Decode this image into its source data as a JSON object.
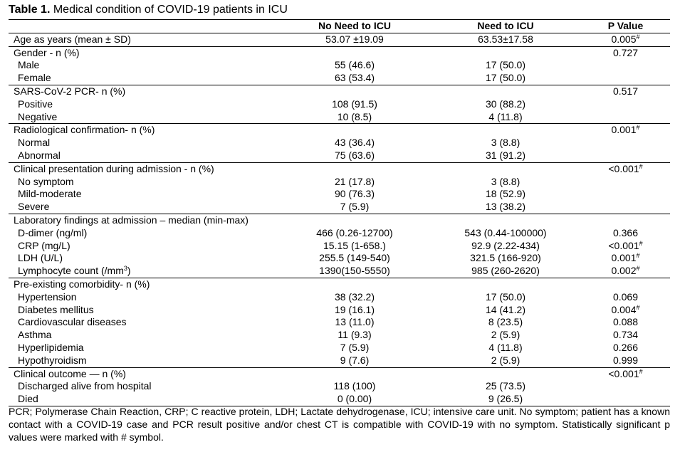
{
  "caption": {
    "bold": "Table 1.",
    "text": " Medical condition of COVID-19 patients in ICU"
  },
  "columns": [
    "No Need to ICU",
    "Need to ICU",
    "P Value"
  ],
  "rows": [
    {
      "label": "Age as years  (mean ± SD)",
      "c1": "53.07 ±19.09",
      "c2": "63.53±17.58",
      "p": "0.005",
      "sig": true,
      "group": true,
      "sub": false
    },
    {
      "label": "Gender - n (%)",
      "c1": "",
      "c2": "",
      "p": "0.727",
      "sig": false,
      "group": true,
      "sub": false
    },
    {
      "label": "Male",
      "c1": "55 (46.6)",
      "c2": "17 (50.0)",
      "p": "",
      "sig": false,
      "group": false,
      "sub": true
    },
    {
      "label": "Female",
      "c1": "63 (53.4)",
      "c2": "17 (50.0)",
      "p": "",
      "sig": false,
      "group": false,
      "sub": true
    },
    {
      "label": "SARS-CoV-2 PCR- n (%)",
      "c1": "",
      "c2": "",
      "p": "0.517",
      "sig": false,
      "group": true,
      "sub": false
    },
    {
      "label": "Positive",
      "c1": "108 (91.5)",
      "c2": "30 (88.2)",
      "p": "",
      "sig": false,
      "group": false,
      "sub": true
    },
    {
      "label": "Negative",
      "c1": "10 (8.5)",
      "c2": "4 (11.8)",
      "p": "",
      "sig": false,
      "group": false,
      "sub": true
    },
    {
      "label": "Radiological confirmation- n (%)",
      "c1": "",
      "c2": "",
      "p": "0.001",
      "sig": true,
      "group": true,
      "sub": false
    },
    {
      "label": "Normal",
      "c1": "43 (36.4)",
      "c2": "3 (8.8)",
      "p": "",
      "sig": false,
      "group": false,
      "sub": true
    },
    {
      "label": "Abnormal",
      "c1": "75 (63.6)",
      "c2": "31 (91.2)",
      "p": "",
      "sig": false,
      "group": false,
      "sub": true
    },
    {
      "label": "Clinical presentation during admission - n (%)",
      "c1": "",
      "c2": "",
      "p": "<0.001",
      "sig": true,
      "group": true,
      "sub": false
    },
    {
      "label": "No symptom",
      "c1": "21 (17.8)",
      "c2": "3 (8.8)",
      "p": "",
      "sig": false,
      "group": false,
      "sub": true
    },
    {
      "label": "Mild-moderate",
      "c1": "90 (76.3)",
      "c2": "18 (52.9)",
      "p": "",
      "sig": false,
      "group": false,
      "sub": true
    },
    {
      "label": "Severe",
      "c1": "7 (5.9)",
      "c2": "13 (38.2)",
      "p": "",
      "sig": false,
      "group": false,
      "sub": true
    },
    {
      "label": "Laboratory findings at admission – median (min-max)",
      "c1": "",
      "c2": "",
      "p": "",
      "sig": false,
      "group": true,
      "sub": false
    },
    {
      "label": "D-dimer (ng/ml)",
      "c1": "466 (0.26-12700)",
      "c2": "543 (0.44-100000)",
      "p": "0.366",
      "sig": false,
      "group": false,
      "sub": true
    },
    {
      "label": "CRP (mg/L)",
      "c1": "15.15 (1-658.)",
      "c2": "92.9 (2.22-434)",
      "p": "<0.001",
      "sig": true,
      "group": false,
      "sub": true
    },
    {
      "label": "LDH (U/L)",
      "c1": "255.5 (149-540)",
      "c2": "321.5 (166-920)",
      "p": "0.001",
      "sig": true,
      "group": false,
      "sub": true
    },
    {
      "label": "Lymphocyte count (/mm",
      "labelSup": "3",
      "labelTail": ")",
      "c1": "1390(150-5550)",
      "c2": "985 (260-2620)",
      "p": "0.002",
      "sig": true,
      "group": false,
      "sub": true
    },
    {
      "label": "Pre-existing comorbidity- n (%)",
      "c1": "",
      "c2": "",
      "p": "",
      "sig": false,
      "group": true,
      "sub": false
    },
    {
      "label": "Hypertension",
      "c1": "38 (32.2)",
      "c2": "17 (50.0)",
      "p": "0.069",
      "sig": false,
      "group": false,
      "sub": true
    },
    {
      "label": "Diabetes mellitus",
      "c1": "19 (16.1)",
      "c2": "14 (41.2)",
      "p": "0.004",
      "sig": true,
      "group": false,
      "sub": true
    },
    {
      "label": "Cardiovascular diseases",
      "c1": "13 (11.0)",
      "c2": "8 (23.5)",
      "p": "0.088",
      "sig": false,
      "group": false,
      "sub": true
    },
    {
      "label": "Asthma",
      "c1": "11 (9.3)",
      "c2": "2 (5.9)",
      "p": "0.734",
      "sig": false,
      "group": false,
      "sub": true
    },
    {
      "label": "Hyperlipidemia",
      "c1": "7 (5.9)",
      "c2": "4 (11.8)",
      "p": "0.266",
      "sig": false,
      "group": false,
      "sub": true
    },
    {
      "label": "Hypothyroidism",
      "c1": "9 (7.6)",
      "c2": "2 (5.9)",
      "p": "0.999",
      "sig": false,
      "group": false,
      "sub": true
    },
    {
      "label": "Clinical outcome — n (%)",
      "c1": "",
      "c2": "",
      "p": "<0.001",
      "sig": true,
      "group": true,
      "sub": false
    },
    {
      "label": "Discharged alive from hospital",
      "c1": "118 (100)",
      "c2": "25 (73.5)",
      "p": "",
      "sig": false,
      "group": false,
      "sub": true
    },
    {
      "label": "Died",
      "c1": "0 (0.00)",
      "c2": "9 (26.5)",
      "p": "",
      "sig": false,
      "group": false,
      "sub": true,
      "last": true
    }
  ],
  "sig_mark": "#",
  "footnote": "PCR; Polymerase Chain Reaction, CRP; C reactive protein, LDH; Lactate dehydrogenase, ICU; intensive care unit. No symptom; patient has a known contact with a COVID-19 case and PCR result positive and/or chest CT is compatible with COVID-19 with no symptom. Statistically significant p values were marked with # symbol."
}
